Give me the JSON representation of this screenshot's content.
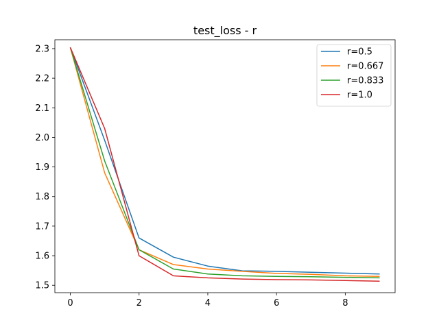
{
  "chart_data": {
    "type": "line",
    "title": "test_loss - r",
    "xlabel": "",
    "ylabel": "",
    "x": [
      0,
      1,
      2,
      3,
      4,
      5,
      6,
      7,
      8,
      9
    ],
    "xlim": [
      -0.45,
      9.45
    ],
    "ylim": [
      1.475,
      2.33
    ],
    "xticks": [
      0,
      2,
      4,
      6,
      8
    ],
    "yticks": [
      1.5,
      1.6,
      1.7,
      1.8,
      1.9,
      2.0,
      2.1,
      2.2,
      2.3
    ],
    "ytick_labels": [
      "1.5",
      "1.6",
      "1.7",
      "1.8",
      "1.9",
      "2.0",
      "2.1",
      "2.2",
      "2.3"
    ],
    "grid": false,
    "legend_position": "top-right",
    "series": [
      {
        "name": "r=0.5",
        "color": "#1f77b4",
        "values": [
          2.304,
          1.99,
          1.66,
          1.595,
          1.565,
          1.549,
          1.547,
          1.544,
          1.541,
          1.538
        ]
      },
      {
        "name": "r=0.667",
        "color": "#ff7f0e",
        "values": [
          2.304,
          1.88,
          1.62,
          1.57,
          1.555,
          1.547,
          1.54,
          1.537,
          1.532,
          1.53
        ]
      },
      {
        "name": "r=0.833",
        "color": "#2ca02c",
        "values": [
          2.304,
          1.92,
          1.62,
          1.555,
          1.538,
          1.532,
          1.53,
          1.529,
          1.527,
          1.525
        ]
      },
      {
        "name": "r=1.0",
        "color": "#d62728",
        "values": [
          2.304,
          2.03,
          1.6,
          1.532,
          1.525,
          1.521,
          1.519,
          1.518,
          1.516,
          1.514
        ]
      }
    ]
  }
}
